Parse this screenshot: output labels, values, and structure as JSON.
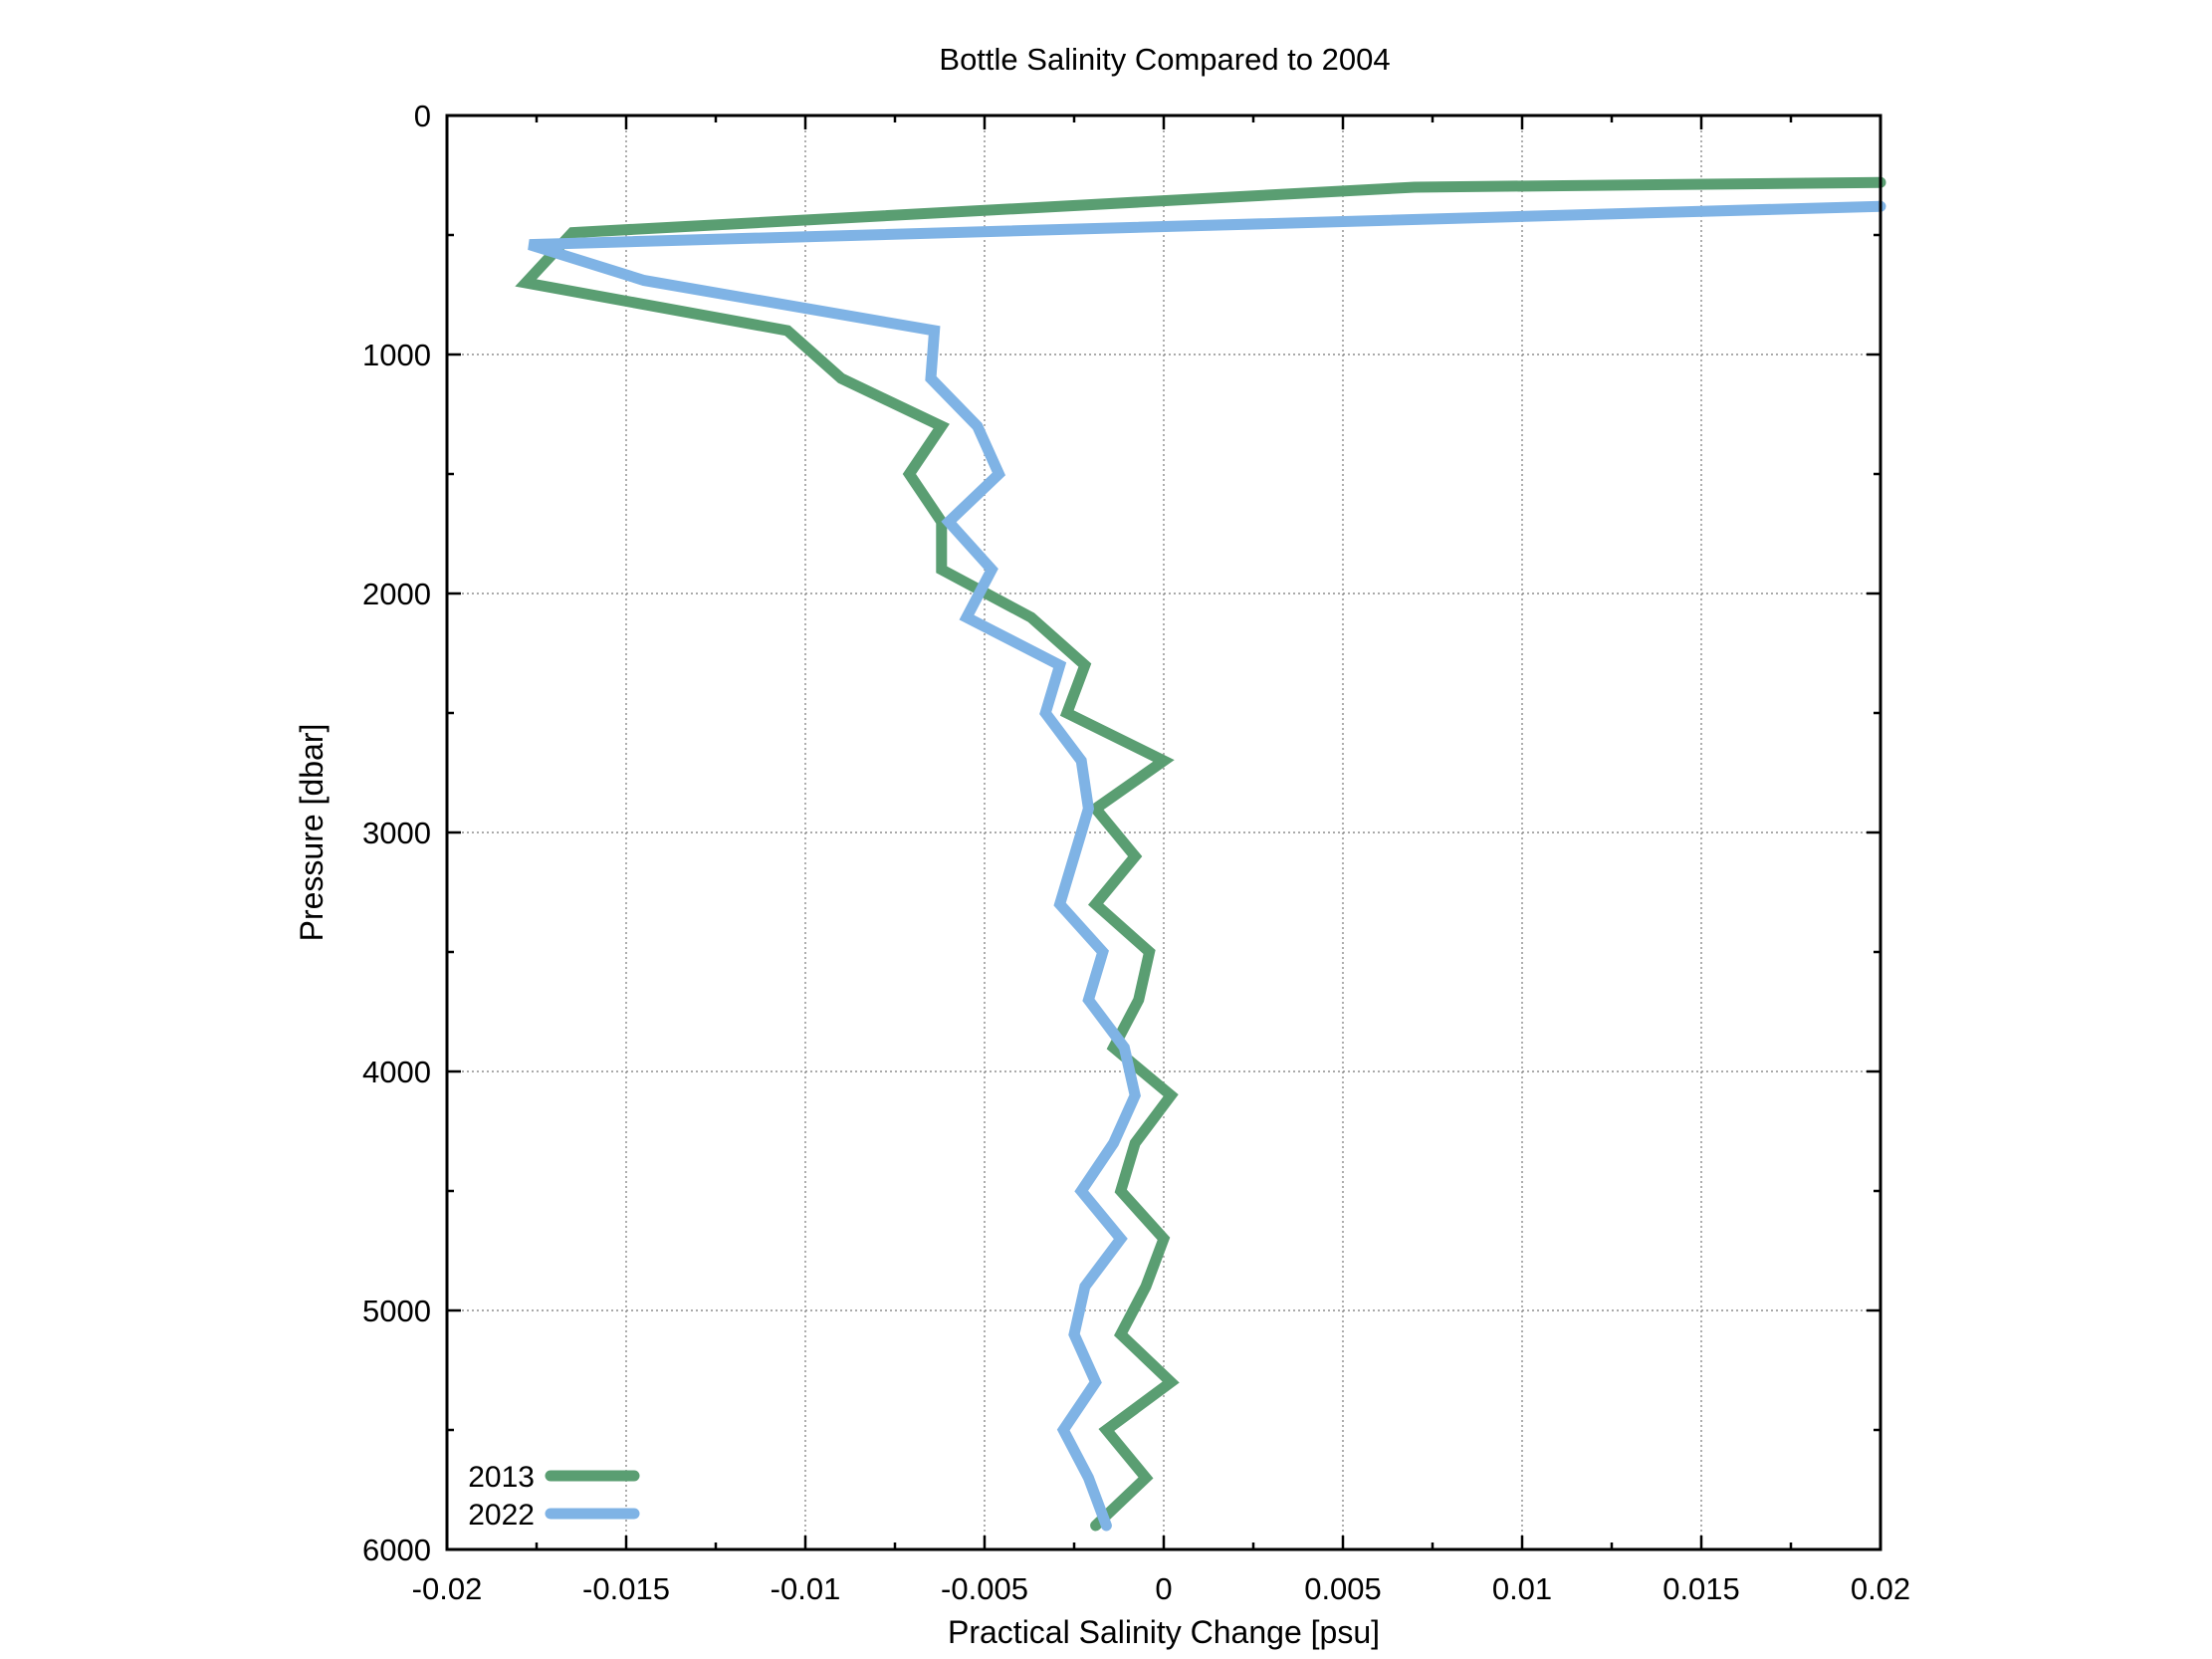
{
  "chart_data": {
    "type": "line",
    "title": "Bottle Salinity Compared to 2004",
    "xlabel": "Practical Salinity Change [psu]",
    "ylabel": "Pressure [dbar]",
    "xlim": [
      -0.02,
      0.02
    ],
    "ylim": [
      6000,
      0
    ],
    "y_inverted": true,
    "grid": true,
    "legend_position": "bottom-left",
    "x_ticks": [
      "-0.02",
      "-0.015",
      "-0.01",
      "-0.005",
      "0",
      "0.005",
      "0.01",
      "0.015",
      "0.02"
    ],
    "y_ticks": [
      "0",
      "1000",
      "2000",
      "3000",
      "4000",
      "5000",
      "6000"
    ],
    "series": [
      {
        "name": "2013",
        "color": "#5a9e72",
        "points": [
          [
            0.02,
            280
          ],
          [
            0.007,
            300
          ],
          [
            -0.0165,
            490
          ],
          [
            -0.0178,
            700
          ],
          [
            -0.0105,
            900
          ],
          [
            -0.009,
            1100
          ],
          [
            -0.0062,
            1300
          ],
          [
            -0.0071,
            1500
          ],
          [
            -0.0062,
            1700
          ],
          [
            -0.0062,
            1900
          ],
          [
            -0.0037,
            2100
          ],
          [
            -0.0022,
            2300
          ],
          [
            -0.0027,
            2500
          ],
          [
            0.0,
            2700
          ],
          [
            -0.0019,
            2900
          ],
          [
            -0.0008,
            3100
          ],
          [
            -0.0019,
            3300
          ],
          [
            -0.0004,
            3500
          ],
          [
            -0.0007,
            3700
          ],
          [
            -0.0014,
            3900
          ],
          [
            0.0002,
            4100
          ],
          [
            -0.0008,
            4300
          ],
          [
            -0.0012,
            4500
          ],
          [
            0.0,
            4700
          ],
          [
            -0.0005,
            4900
          ],
          [
            -0.0012,
            5100
          ],
          [
            0.0002,
            5300
          ],
          [
            -0.0016,
            5500
          ],
          [
            -0.0005,
            5700
          ],
          [
            -0.0019,
            5900
          ]
        ]
      },
      {
        "name": "2022",
        "color": "#7fb3e5",
        "points": [
          [
            0.02,
            380
          ],
          [
            -0.0177,
            540
          ],
          [
            -0.0145,
            690
          ],
          [
            -0.0064,
            900
          ],
          [
            -0.0065,
            1100
          ],
          [
            -0.0052,
            1300
          ],
          [
            -0.0046,
            1500
          ],
          [
            -0.006,
            1700
          ],
          [
            -0.0048,
            1900
          ],
          [
            -0.0055,
            2100
          ],
          [
            -0.0029,
            2300
          ],
          [
            -0.0033,
            2500
          ],
          [
            -0.0023,
            2700
          ],
          [
            -0.0021,
            2900
          ],
          [
            -0.0025,
            3100
          ],
          [
            -0.0029,
            3300
          ],
          [
            -0.0017,
            3500
          ],
          [
            -0.0021,
            3700
          ],
          [
            -0.0011,
            3900
          ],
          [
            -0.0008,
            4100
          ],
          [
            -0.0014,
            4300
          ],
          [
            -0.0023,
            4500
          ],
          [
            -0.0012,
            4700
          ],
          [
            -0.0022,
            4900
          ],
          [
            -0.0025,
            5100
          ],
          [
            -0.0019,
            5300
          ],
          [
            -0.0028,
            5500
          ],
          [
            -0.0021,
            5700
          ],
          [
            -0.0016,
            5900
          ]
        ]
      }
    ]
  }
}
